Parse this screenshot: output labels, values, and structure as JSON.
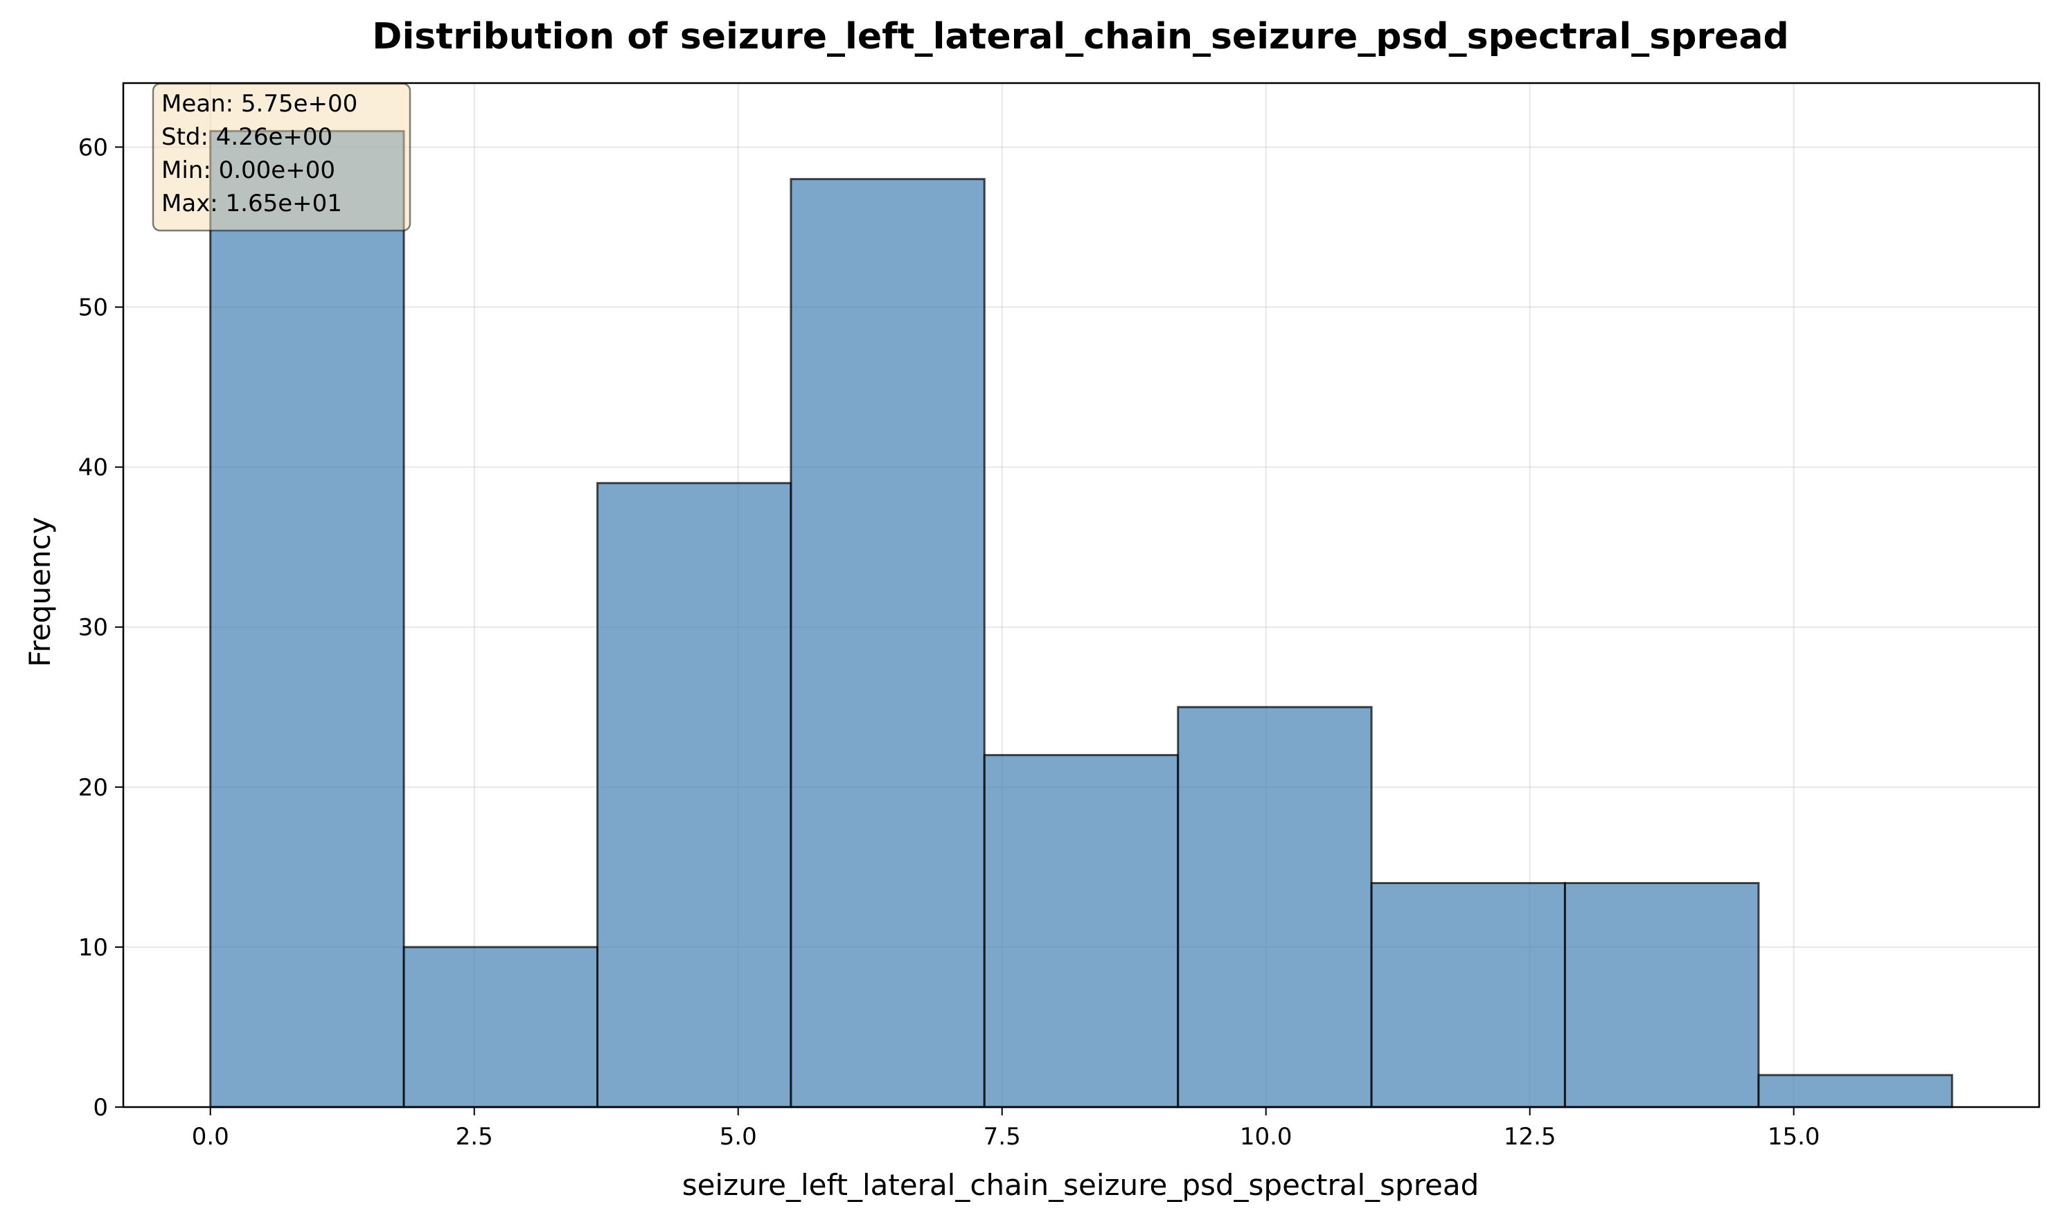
{
  "chart_data": {
    "type": "bar",
    "title": "Distribution of seizure_left_lateral_chain_seizure_psd_spectral_spread",
    "xlabel": "seizure_left_lateral_chain_seizure_psd_spectral_spread",
    "ylabel": "Frequency",
    "xlim": [
      -0.825,
      17.325
    ],
    "ylim": [
      0,
      64
    ],
    "grid": true,
    "bin_edges": [
      0.0,
      1.833,
      3.667,
      5.5,
      7.333,
      9.167,
      11.0,
      12.833,
      14.667,
      16.5
    ],
    "values": [
      61,
      10,
      39,
      58,
      22,
      25,
      14,
      14,
      2
    ],
    "x_ticks": [
      0.0,
      2.5,
      5.0,
      7.5,
      10.0,
      12.5,
      15.0
    ],
    "x_tick_labels": [
      "0.0",
      "2.5",
      "5.0",
      "7.5",
      "10.0",
      "12.5",
      "15.0"
    ],
    "y_ticks": [
      0,
      10,
      20,
      30,
      40,
      50,
      60
    ],
    "y_tick_labels": [
      "0",
      "10",
      "20",
      "30",
      "40",
      "50",
      "60"
    ],
    "stats_box": {
      "placement": "top-left",
      "lines": [
        "Mean: 5.75e+00",
        "Std: 4.26e+00",
        "Min: 0.00e+00",
        "Max: 1.65e+01"
      ]
    },
    "colors": {
      "bar_fill": "#4682b4",
      "bar_edge": "#000000",
      "stats_box_fill": "#f5deb3",
      "stats_box_edge": "#000000"
    }
  }
}
